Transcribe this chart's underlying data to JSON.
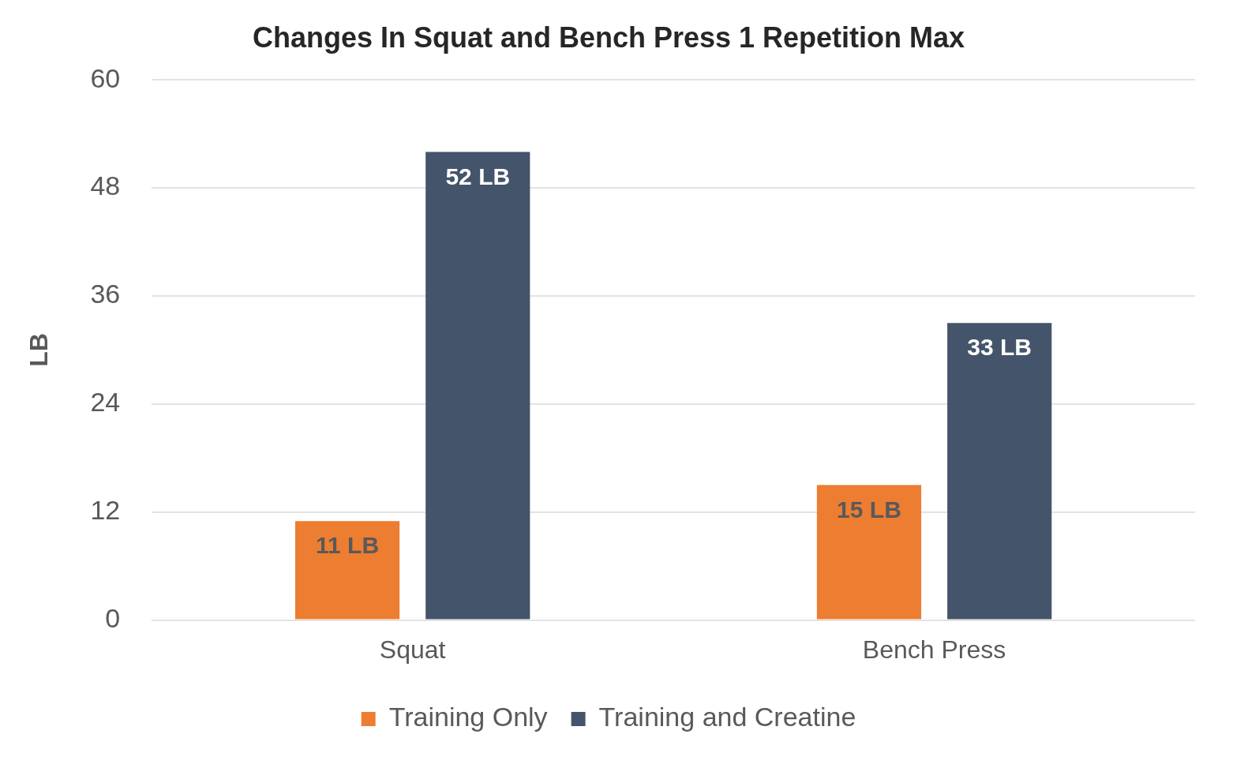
{
  "chart_data": {
    "type": "bar",
    "title": "Changes In Squat and Bench Press 1 Repetition Max",
    "ylabel": "LB",
    "categories": [
      "Squat",
      "Bench Press"
    ],
    "series": [
      {
        "name": "Training Only",
        "color": "#ed7d31",
        "values": [
          11,
          15
        ],
        "value_labels": [
          "11 LB",
          "15 LB"
        ]
      },
      {
        "name": "Training and Creatine",
        "color": "#44546a",
        "values": [
          52,
          33
        ],
        "value_labels": [
          "52 LB",
          "33 LB"
        ]
      }
    ],
    "ylim": [
      0,
      60
    ],
    "yticks": [
      0,
      12,
      24,
      36,
      48,
      60
    ],
    "grid": "y",
    "legend": "bottom"
  }
}
